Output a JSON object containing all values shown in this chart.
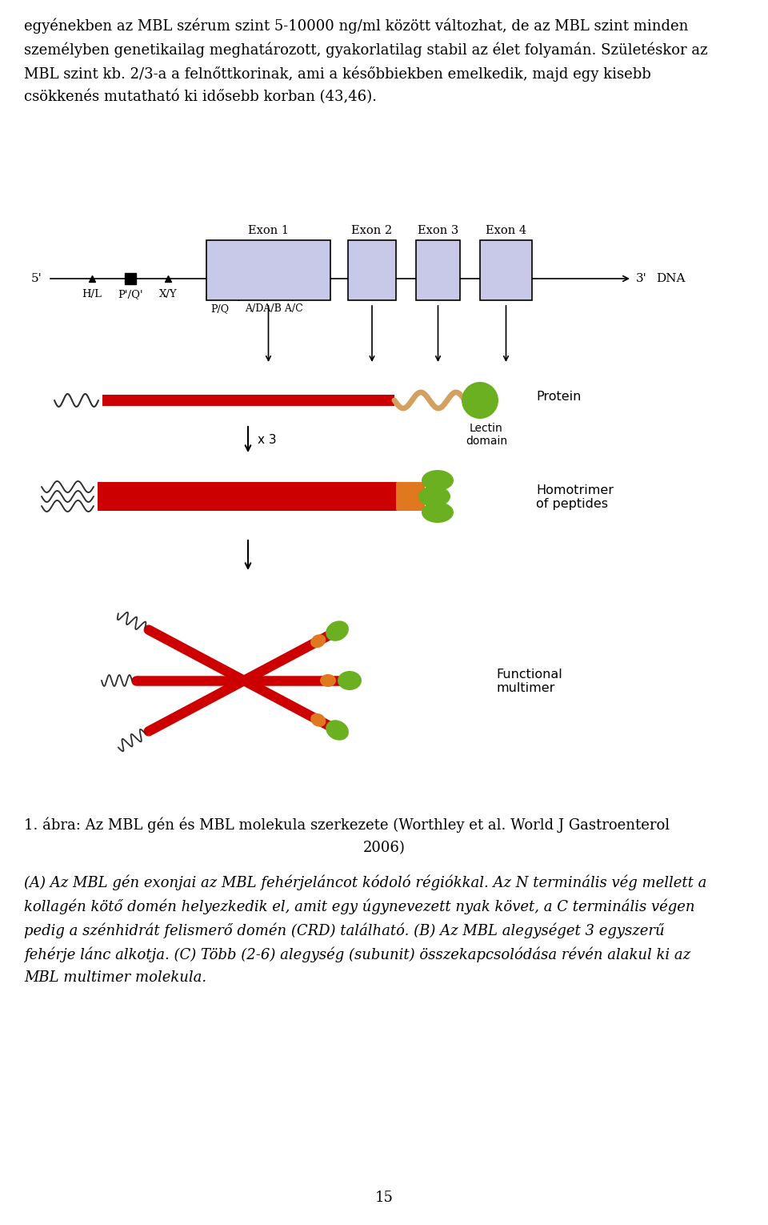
{
  "background_color": "#ffffff",
  "page_width": 9.6,
  "page_height": 15.3,
  "lines_top": [
    "egyénekben az MBL szérum szint 5-10000 ng/ml között változhat, de az MBL szint minden",
    "személyben genetikailag meghatározott, gyakorlatilag stabil az élet folyamán. Születéskor az",
    "MBL szint kb. 2/3-a a felnőttkorinak, ami a későbbiekben emelkedik, majd egy kisebb",
    "csökkenés mutatható ki idősebb korban (43,46)."
  ],
  "caption_line1": "1. ábra: Az MBL gén és MBL molekula szerkezete (Worthley et al. World J Gastroenterol",
  "caption_line2": "2006)",
  "cap_italic_lines": [
    "(A) Az MBL gén exonjai az MBL fehérjeláncot kódoló régiókkal. Az N terminális vég mellett a",
    "kollagén kötő domén helyezkedik el, amit egy úgynevezett nyak követ, a C terminális végen",
    "pedig a szénhidrát felismerő domén (CRD) található. (B) Az MBL alegységet 3 egyszerű",
    "fehérje lánc alkotja. (C) Több (2-6) alegység (subunit) összekapcsolódása révén alakul ki az",
    "MBL multimer molekula."
  ],
  "page_num": "15",
  "exon_box_color": "#c8c8e8",
  "exon_border_color": "#000000",
  "red_color": "#cc0000",
  "orange_color": "#e07820",
  "green_color": "#6ab020",
  "tan_color": "#d4a060",
  "dark_color": "#303030"
}
